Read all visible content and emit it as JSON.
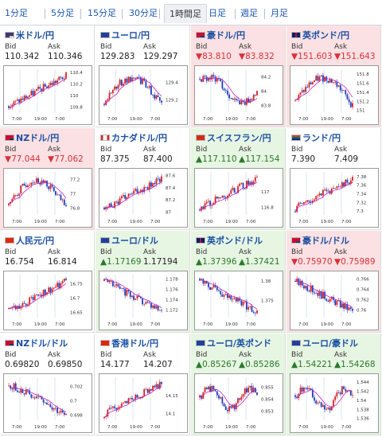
{
  "timeframe_tabs": [
    {
      "label": "1分足",
      "active": false
    },
    {
      "label": "5分足",
      "active": false
    },
    {
      "label": "15分足",
      "active": false
    },
    {
      "label": "30分足",
      "active": false
    },
    {
      "label": "1時間足",
      "active": true
    },
    {
      "label": "日足",
      "active": false
    },
    {
      "label": "週足",
      "active": false
    },
    {
      "label": "月足",
      "active": false
    }
  ],
  "labels": {
    "bid": "Bid",
    "ask": "Ask"
  },
  "colors": {
    "up_bg": "#e7f5e3",
    "down_bg": "#fbe1e3",
    "up_candle": "#d42020",
    "down_candle": "#1f3fbf",
    "ma_line": "#c020c0"
  },
  "pairs": [
    {
      "name": "米ドル/円",
      "flag": "us-flag",
      "bid": "110.342",
      "ask": "110.346",
      "state": "neutral",
      "trend": "up",
      "chart_data": {
        "type": "candlestick",
        "x_ticks": [
          "7:00",
          "19:00",
          "7:00"
        ],
        "y_ticks": [
          "110.4",
          "110.2",
          "110",
          "109.8"
        ],
        "ylim": [
          109.7,
          110.45
        ]
      }
    },
    {
      "name": "ユーロ/円",
      "flag": "eu-flag",
      "bid": "129.283",
      "ask": "129.297",
      "state": "neutral",
      "trend": "updown",
      "chart_data": {
        "type": "candlestick",
        "x_ticks": [
          "7:00",
          "19:00",
          "7:00"
        ],
        "y_ticks": [
          "129.4",
          "129.2"
        ],
        "ylim": [
          129.05,
          129.55
        ]
      }
    },
    {
      "name": "豪ドル/円",
      "flag": "au-flag",
      "bid": "▼83.810",
      "ask": "▼83.832",
      "state": "down",
      "trend": "updown2",
      "chart_data": {
        "type": "candlestick",
        "x_ticks": [
          "7:00",
          "19:00",
          "7:00"
        ],
        "y_ticks": [
          "84.2",
          "84",
          "83.8"
        ],
        "ylim": [
          83.7,
          84.3
        ]
      }
    },
    {
      "name": "英ポンド/円",
      "flag": "gb-flag",
      "bid": "▼151.603",
      "ask": "▼151.643",
      "state": "down",
      "trend": "updown",
      "chart_data": {
        "type": "candlestick",
        "x_ticks": [
          "7:00",
          "19:00",
          "7:00"
        ],
        "y_ticks": [
          "151.8",
          "151.6",
          "151.4",
          "151.2",
          "151"
        ],
        "ylim": [
          150.95,
          151.9
        ]
      }
    },
    {
      "name": "NZドル/円",
      "flag": "nz-flag",
      "bid": "▼77.044",
      "ask": "▼77.062",
      "state": "down",
      "trend": "updown",
      "chart_data": {
        "type": "candlestick",
        "x_ticks": [
          "7:00",
          "19:00",
          "7:00"
        ],
        "y_ticks": [
          "77.2",
          "77",
          "76.8"
        ],
        "ylim": [
          76.7,
          77.3
        ]
      }
    },
    {
      "name": "カナダドル/円",
      "flag": "ca-flag",
      "bid": "87.375",
      "ask": "87.400",
      "state": "neutral",
      "trend": "up",
      "chart_data": {
        "type": "candlestick",
        "x_ticks": [
          "7:00",
          "19:00",
          "7:00"
        ],
        "y_ticks": [
          "87.6",
          "87.4",
          "87.2",
          "87"
        ],
        "ylim": [
          86.95,
          87.65
        ]
      }
    },
    {
      "name": "スイスフラン/円",
      "flag": "ch-flag",
      "bid": "▲117.110",
      "ask": "▲117.154",
      "state": "up",
      "trend": "up",
      "chart_data": {
        "type": "candlestick",
        "x_ticks": [
          "7:00",
          "19:00",
          "7:00"
        ],
        "y_ticks": [
          "117",
          "116.8"
        ],
        "ylim": [
          116.7,
          117.25
        ]
      }
    },
    {
      "name": "ランド/円",
      "flag": "za-flag",
      "bid": "7.390",
      "ask": "7.409",
      "state": "neutral",
      "trend": "up",
      "chart_data": {
        "type": "candlestick",
        "x_ticks": [
          "7:00",
          "19:00",
          "7:00"
        ],
        "y_ticks": [
          "7.38",
          "7.36",
          "7.34",
          "7.32",
          "7.3"
        ],
        "ylim": [
          7.29,
          7.39
        ]
      }
    },
    {
      "name": "人民元/円",
      "flag": "cn-flag",
      "bid": "16.754",
      "ask": "16.814",
      "state": "neutral",
      "trend": "up",
      "chart_data": {
        "type": "candlestick",
        "x_ticks": [
          "7:00",
          "19:00",
          "7:00"
        ],
        "y_ticks": [
          "16.75",
          "16.7",
          "16.65"
        ],
        "ylim": [
          16.63,
          16.78
        ]
      }
    },
    {
      "name": "ユーロ/ドル",
      "flag": "eu-flag",
      "bid": "▲1.17169",
      "ask": "1.17194",
      "state": "up",
      "trend": "down",
      "chart_data": {
        "type": "candlestick",
        "x_ticks": [
          "7:00",
          "19:00",
          "7:00"
        ],
        "y_ticks": [
          "1.178",
          "1.176",
          "1.174",
          "1.172"
        ],
        "ylim": [
          1.1705,
          1.1788
        ]
      }
    },
    {
      "name": "英ポンド/ドル",
      "flag": "gb-flag",
      "bid": "▲1.37396",
      "ask": "▲1.37421",
      "state": "up",
      "trend": "down",
      "chart_data": {
        "type": "candlestick",
        "x_ticks": [
          "7:00",
          "19:00",
          "7:00"
        ],
        "y_ticks": [
          "1.38",
          "1.375"
        ],
        "ylim": [
          1.3705,
          1.3815
        ]
      }
    },
    {
      "name": "豪ドル/ドル",
      "flag": "au-flag",
      "bid": "▼0.75970",
      "ask": "▼0.75989",
      "state": "down",
      "trend": "down",
      "chart_data": {
        "type": "candlestick",
        "x_ticks": [
          "7:00",
          "19:00",
          "7:00"
        ],
        "y_ticks": [
          "0.766",
          "0.764",
          "0.762",
          "0.76"
        ],
        "ylim": [
          0.7585,
          0.7668
        ]
      }
    },
    {
      "name": "NZドル/ドル",
      "flag": "nz-flag",
      "bid": "0.69820",
      "ask": "0.69850",
      "state": "neutral",
      "trend": "down",
      "chart_data": {
        "type": "candlestick",
        "x_ticks": [
          "7:00",
          "19:00",
          "7:00"
        ],
        "y_ticks": [
          "0.702",
          "0.7",
          "0.698"
        ],
        "ylim": [
          0.6972,
          0.7032
        ]
      }
    },
    {
      "name": "香港ドル/円",
      "flag": "hk-flag",
      "bid": "14.177",
      "ask": "14.207",
      "state": "neutral",
      "trend": "up",
      "chart_data": {
        "type": "candlestick",
        "x_ticks": [
          "7:00",
          "19:00",
          "7:00"
        ],
        "y_ticks": [
          "14.15",
          "14.1"
        ],
        "ylim": [
          14.08,
          14.2
        ]
      }
    },
    {
      "name": "ユーロ/英ポンド",
      "flag": "eu-flag",
      "bid": "▲0.85267",
      "ask": "▲0.85286",
      "state": "up",
      "trend": "flat",
      "chart_data": {
        "type": "candlestick",
        "x_ticks": [
          "7:00",
          "19:00",
          "7:00"
        ],
        "y_ticks": [
          "0.855",
          "0.854",
          "0.853"
        ],
        "ylim": [
          0.8522,
          0.8558
        ]
      }
    },
    {
      "name": "ユーロ/豪ドル",
      "flag": "eu-flag",
      "bid": "▲1.54221",
      "ask": "▲1.54268",
      "state": "up",
      "trend": "flat",
      "chart_data": {
        "type": "candlestick",
        "x_ticks": [
          "7:00",
          "19:00",
          "7:00"
        ],
        "y_ticks": [
          "1.544",
          "1.542",
          "1.54",
          "1.538",
          "1.536"
        ],
        "ylim": [
          1.5355,
          1.545
        ]
      }
    }
  ]
}
